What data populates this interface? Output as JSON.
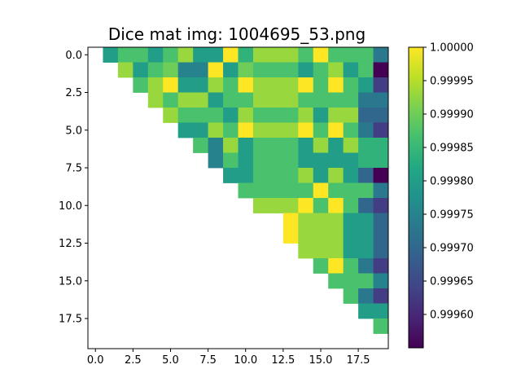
{
  "chart_data": {
    "type": "heatmap",
    "title": "Dice mat img: 1004695_53.png",
    "xlabel": "",
    "ylabel": "",
    "xlim": [
      -0.5,
      19.5
    ],
    "ylim": [
      19.5,
      -0.5
    ],
    "x_ticks": [
      0.0,
      2.5,
      5.0,
      7.5,
      10.0,
      12.5,
      15.0,
      17.5
    ],
    "y_ticks": [
      0.0,
      2.5,
      5.0,
      7.5,
      10.0,
      12.5,
      15.0,
      17.5
    ],
    "x_tick_labels": [
      "0.0",
      "2.5",
      "5.0",
      "7.5",
      "10.0",
      "12.5",
      "15.0",
      "17.5"
    ],
    "y_tick_labels": [
      "0.0",
      "2.5",
      "5.0",
      "7.5",
      "10.0",
      "12.5",
      "15.0",
      "17.5"
    ],
    "colormap": "viridis",
    "colorbar": {
      "min": 0.99955,
      "max": 1.0,
      "ticks": [
        0.9996,
        0.99965,
        0.9997,
        0.99975,
        0.9998,
        0.99985,
        0.9999,
        0.99995,
        1.0
      ],
      "tick_labels": [
        "0.99960",
        "0.99965",
        "0.99970",
        "0.99975",
        "0.99980",
        "0.99985",
        "0.99990",
        "0.99995",
        "1.00000"
      ]
    },
    "grid": false,
    "matrix": [
      [
        null,
        0.9998,
        0.99987,
        0.99987,
        0.9998,
        0.99987,
        0.99993,
        0.9998,
        0.9998,
        1.0,
        0.99984,
        0.99993,
        0.99993,
        0.99993,
        0.99987,
        1.0,
        0.99987,
        0.99987,
        0.99987,
        0.99973
      ],
      [
        null,
        null,
        0.99993,
        0.9998,
        0.99987,
        0.9999,
        0.99975,
        0.99975,
        1.0,
        0.9998,
        0.9999,
        0.99987,
        0.99987,
        0.99987,
        0.9998,
        0.99987,
        0.99993,
        0.9998,
        0.99987,
        0.99955
      ],
      [
        null,
        null,
        null,
        0.99987,
        0.99993,
        1.0,
        0.9998,
        0.9998,
        0.99993,
        0.99987,
        1.0,
        0.99993,
        0.99993,
        0.99993,
        1.0,
        0.99987,
        1.0,
        0.99987,
        0.9998,
        0.99963
      ],
      [
        null,
        null,
        null,
        null,
        0.99993,
        0.99987,
        0.99993,
        0.99993,
        0.9998,
        0.99987,
        0.99987,
        0.99993,
        0.99993,
        0.99993,
        0.99987,
        0.99987,
        0.99987,
        0.99987,
        0.99973,
        0.99973
      ],
      [
        null,
        null,
        null,
        null,
        null,
        0.99993,
        0.99987,
        0.99987,
        0.99987,
        0.9998,
        0.99993,
        0.99987,
        0.99987,
        0.99987,
        0.99993,
        0.9998,
        0.99993,
        0.99993,
        0.9997,
        0.9997
      ],
      [
        null,
        null,
        null,
        null,
        null,
        null,
        0.9998,
        0.9998,
        0.99993,
        0.99987,
        1.0,
        0.99993,
        0.99993,
        0.99993,
        1.0,
        0.99987,
        1.0,
        0.99987,
        0.99973,
        0.99963
      ],
      [
        null,
        null,
        null,
        null,
        null,
        null,
        null,
        0.99987,
        0.99975,
        0.99993,
        0.9998,
        0.99987,
        0.99987,
        0.99987,
        0.9998,
        0.99993,
        0.9998,
        0.99993,
        0.99984,
        0.99984
      ],
      [
        null,
        null,
        null,
        null,
        null,
        null,
        null,
        null,
        0.99975,
        0.99987,
        0.9998,
        0.99987,
        0.99987,
        0.99987,
        0.9998,
        0.9998,
        0.9998,
        0.9998,
        0.99984,
        0.99984
      ],
      [
        null,
        null,
        null,
        null,
        null,
        null,
        null,
        null,
        null,
        0.9998,
        0.9998,
        0.99987,
        0.99987,
        0.99987,
        0.99993,
        0.9998,
        0.99993,
        0.9998,
        0.9997,
        0.99955
      ],
      [
        null,
        null,
        null,
        null,
        null,
        null,
        null,
        null,
        null,
        null,
        0.99987,
        0.99987,
        0.99987,
        0.99987,
        0.99987,
        1.0,
        0.99987,
        0.99987,
        0.99987,
        0.99973
      ],
      [
        null,
        null,
        null,
        null,
        null,
        null,
        null,
        null,
        null,
        null,
        null,
        0.99993,
        0.99993,
        0.99993,
        1.0,
        0.99987,
        1.0,
        0.99987,
        0.9997,
        0.99963
      ],
      [
        null,
        null,
        null,
        null,
        null,
        null,
        null,
        null,
        null,
        null,
        null,
        null,
        null,
        1.0,
        0.99993,
        0.99993,
        0.99993,
        0.9998,
        0.9998,
        0.9997
      ],
      [
        null,
        null,
        null,
        null,
        null,
        null,
        null,
        null,
        null,
        null,
        null,
        null,
        null,
        1.0,
        0.99993,
        0.99993,
        0.99993,
        0.9998,
        0.9998,
        0.9997
      ],
      [
        null,
        null,
        null,
        null,
        null,
        null,
        null,
        null,
        null,
        null,
        null,
        null,
        null,
        null,
        0.99993,
        0.99993,
        0.99993,
        0.9998,
        0.9998,
        0.9997
      ],
      [
        null,
        null,
        null,
        null,
        null,
        null,
        null,
        null,
        null,
        null,
        null,
        null,
        null,
        null,
        null,
        0.99987,
        1.0,
        0.99987,
        0.99973,
        0.99963
      ],
      [
        null,
        null,
        null,
        null,
        null,
        null,
        null,
        null,
        null,
        null,
        null,
        null,
        null,
        null,
        null,
        null,
        0.99987,
        0.99987,
        0.99987,
        0.99975
      ],
      [
        null,
        null,
        null,
        null,
        null,
        null,
        null,
        null,
        null,
        null,
        null,
        null,
        null,
        null,
        null,
        null,
        null,
        0.99987,
        0.99973,
        0.99963
      ],
      [
        null,
        null,
        null,
        null,
        null,
        null,
        null,
        null,
        null,
        null,
        null,
        null,
        null,
        null,
        null,
        null,
        null,
        null,
        0.9998,
        0.9998
      ],
      [
        null,
        null,
        null,
        null,
        null,
        null,
        null,
        null,
        null,
        null,
        null,
        null,
        null,
        null,
        null,
        null,
        null,
        null,
        null,
        0.99987
      ],
      [
        null,
        null,
        null,
        null,
        null,
        null,
        null,
        null,
        null,
        null,
        null,
        null,
        null,
        null,
        null,
        null,
        null,
        null,
        null,
        null
      ]
    ]
  }
}
